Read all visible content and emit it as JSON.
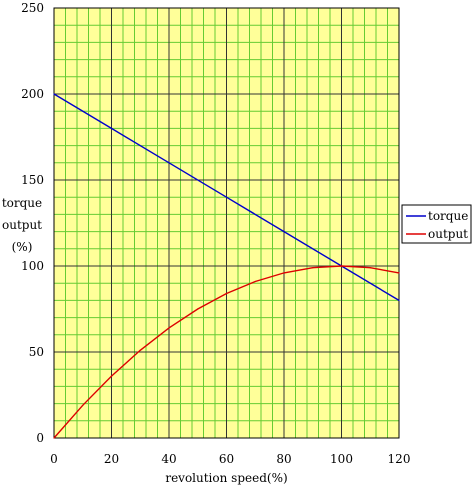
{
  "chart_data": {
    "type": "line",
    "title": "",
    "xlabel": "revolution speed(%)",
    "ylabel_lines": [
      "torque",
      "output",
      "(%)"
    ],
    "xlim": [
      0,
      120
    ],
    "ylim": [
      0,
      250
    ],
    "xticks": [
      0,
      20,
      40,
      60,
      80,
      100,
      120
    ],
    "yticks": [
      0,
      50,
      100,
      150,
      200,
      250
    ],
    "grid": true,
    "minor_grid_x_step": 4,
    "minor_grid_y_step": 10,
    "legend_position": "right",
    "plot_background": "#ffff99",
    "series": [
      {
        "name": "torque",
        "color": "#0000cc",
        "x": [
          0,
          20,
          40,
          60,
          80,
          100,
          120
        ],
        "y": [
          200,
          180,
          160,
          140,
          120,
          100,
          80
        ]
      },
      {
        "name": "output",
        "color": "#dd0000",
        "x": [
          0,
          10,
          20,
          30,
          40,
          50,
          60,
          70,
          80,
          90,
          100,
          110,
          120
        ],
        "y": [
          0,
          19,
          36,
          51,
          64,
          75,
          84,
          91,
          96,
          99,
          100,
          99,
          96
        ]
      }
    ]
  }
}
